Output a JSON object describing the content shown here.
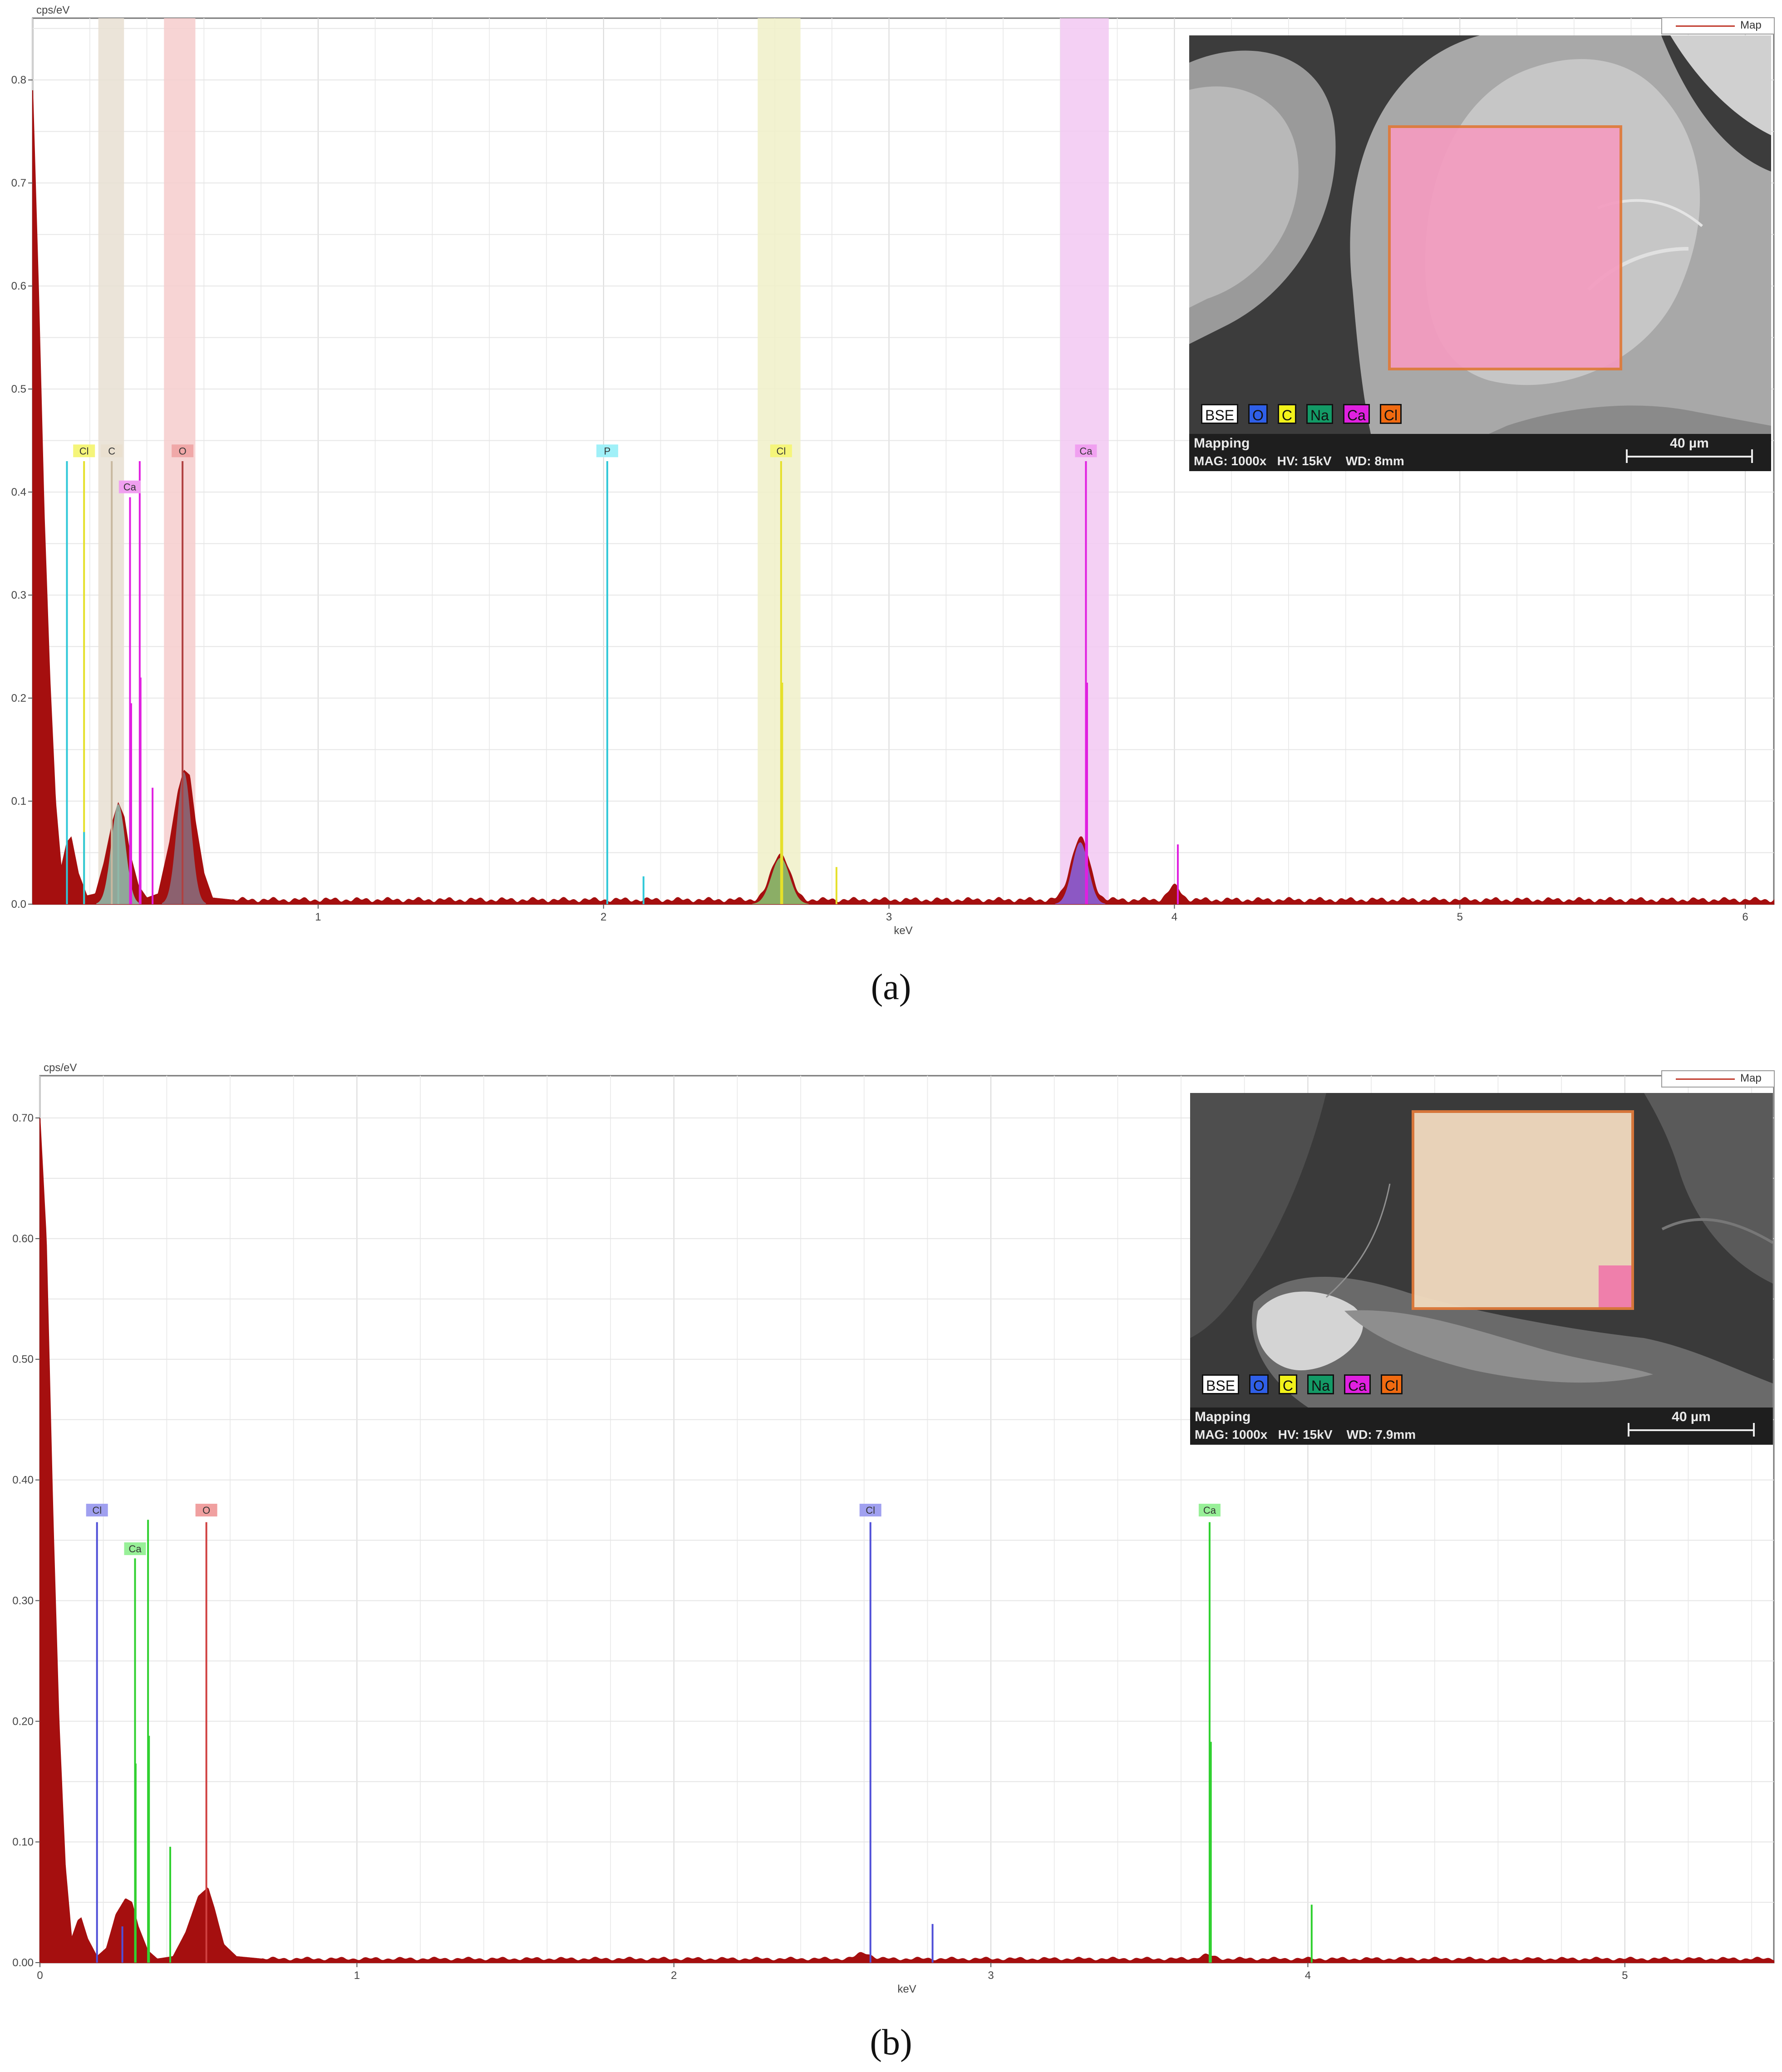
{
  "chart_data": [
    {
      "panel": "a",
      "type": "area",
      "caption": "(a)",
      "ylabel": "cps/eV",
      "xlabel": "keV",
      "xlim": [
        0,
        6.1
      ],
      "ylim": [
        0,
        0.86
      ],
      "xticks": [
        1,
        2,
        3,
        4,
        5,
        6
      ],
      "yticks": [
        0.0,
        0.1,
        0.2,
        0.3,
        0.4,
        0.5,
        0.6,
        0.7,
        0.8
      ],
      "ytick_labels": [
        "0.0",
        "0.1",
        "0.2",
        "0.3",
        "0.4",
        "0.5",
        "0.6",
        "0.7",
        "0.8"
      ],
      "grid": true,
      "legend": {
        "label": "Map",
        "position": "top-right",
        "color": "#c0392b"
      },
      "spectrum_color": "#a50f0f",
      "spectrum": {
        "start": [
          [
            0.0,
            0.79
          ],
          [
            0.02,
            0.6
          ],
          [
            0.04,
            0.38
          ],
          [
            0.06,
            0.22
          ],
          [
            0.08,
            0.1
          ],
          [
            0.1,
            0.035
          ],
          [
            0.12,
            0.06
          ],
          [
            0.135,
            0.065
          ],
          [
            0.16,
            0.03
          ],
          [
            0.19,
            0.008
          ],
          [
            0.22,
            0.01
          ],
          [
            0.25,
            0.04
          ],
          [
            0.28,
            0.08
          ],
          [
            0.3,
            0.098
          ],
          [
            0.32,
            0.085
          ],
          [
            0.34,
            0.05
          ],
          [
            0.37,
            0.018
          ],
          [
            0.4,
            0.006
          ],
          [
            0.44,
            0.01
          ],
          [
            0.48,
            0.06
          ],
          [
            0.51,
            0.11
          ],
          [
            0.53,
            0.13
          ],
          [
            0.55,
            0.125
          ],
          [
            0.57,
            0.08
          ],
          [
            0.6,
            0.03
          ],
          [
            0.63,
            0.006
          ],
          [
            0.7,
            0.004
          ]
        ],
        "baseline": 0.004,
        "peaks": [
          [
            2.62,
            0.045,
            0.045
          ],
          [
            3.67,
            0.06,
            0.045
          ],
          [
            4.0,
            0.013,
            0.03
          ]
        ],
        "noise": 0.0025
      },
      "highlight_bands": [
        {
          "element": "C",
          "from": 0.23,
          "to": 0.32,
          "color": "#e8dfd2"
        },
        {
          "element": "O",
          "from": 0.46,
          "to": 0.57,
          "color": "#f6cccc"
        },
        {
          "element": "Cl",
          "from": 2.54,
          "to": 2.69,
          "color": "#f0f0c8"
        },
        {
          "element": "Ca",
          "from": 3.6,
          "to": 3.77,
          "color": "#f2c8f2"
        }
      ],
      "peak_fills": [
        {
          "element": "C",
          "center": 0.3,
          "height": 0.097,
          "width": 0.035,
          "color": "#8fb8a8"
        },
        {
          "element": "O",
          "center": 0.53,
          "height": 0.128,
          "width": 0.035,
          "color": "#8a6a7a"
        },
        {
          "element": "Cl",
          "center": 2.62,
          "height": 0.045,
          "width": 0.045,
          "color": "#88c070"
        },
        {
          "element": "Ca",
          "center": 3.67,
          "height": 0.06,
          "width": 0.04,
          "color": "#8a60d8"
        }
      ],
      "markers": [
        {
          "label": "Cl",
          "x": 0.18,
          "label_y": 0.44,
          "color": "#e5e02a",
          "label_bg": "#f5f57a"
        },
        {
          "label": "C",
          "x": 0.277,
          "label_y": 0.44,
          "color": "#c8b8a0",
          "label_bg": "#eae0d0"
        },
        {
          "label": "Ca",
          "x": 0.34,
          "label_y": 0.405,
          "color": "#e020e0",
          "label_bg": "#f0a0f0"
        },
        {
          "label": "O",
          "x": 0.525,
          "label_y": 0.44,
          "color": "#b04040",
          "label_bg": "#f0a8a8"
        },
        {
          "label": "P",
          "x": 2.013,
          "label_y": 0.44,
          "color": "#30c8d8",
          "label_bg": "#a0f0f8"
        },
        {
          "label": "Cl",
          "x": 2.622,
          "label_y": 0.44,
          "color": "#e5e02a",
          "label_bg": "#f5f57a"
        },
        {
          "label": "Ca",
          "x": 3.69,
          "label_y": 0.44,
          "color": "#e020e0",
          "label_bg": "#f0a0f0"
        }
      ],
      "lines": [
        {
          "x": 0.12,
          "y": 0.43,
          "color": "#30c8d8"
        },
        {
          "x": 0.18,
          "y": 0.43,
          "color": "#e5e02a"
        },
        {
          "x": 0.18,
          "y": 0.07,
          "color": "#30c8d8"
        },
        {
          "x": 0.277,
          "y": 0.43,
          "color": "#c8b8a0"
        },
        {
          "x": 0.3,
          "y": 0.09,
          "color": "#8fb8a8"
        },
        {
          "x": 0.341,
          "y": 0.395,
          "color": "#e020e0"
        },
        {
          "x": 0.345,
          "y": 0.195,
          "color": "#e020e0"
        },
        {
          "x": 0.375,
          "y": 0.43,
          "color": "#e020e0"
        },
        {
          "x": 0.378,
          "y": 0.22,
          "color": "#e020e0"
        },
        {
          "x": 0.42,
          "y": 0.113,
          "color": "#e020e0"
        },
        {
          "x": 0.525,
          "y": 0.43,
          "color": "#b04040"
        },
        {
          "x": 2.013,
          "y": 0.43,
          "color": "#30c8d8"
        },
        {
          "x": 2.14,
          "y": 0.027,
          "color": "#30c8d8"
        },
        {
          "x": 2.622,
          "y": 0.43,
          "color": "#e5e02a"
        },
        {
          "x": 2.626,
          "y": 0.215,
          "color": "#e5e02a"
        },
        {
          "x": 2.816,
          "y": 0.036,
          "color": "#e5e02a"
        },
        {
          "x": 3.69,
          "y": 0.43,
          "color": "#e020e0"
        },
        {
          "x": 3.694,
          "y": 0.215,
          "color": "#e020e0"
        },
        {
          "x": 4.012,
          "y": 0.058,
          "color": "#e020e0"
        }
      ],
      "inset": {
        "legend": [
          "BSE",
          "O",
          "C",
          "Na",
          "Ca",
          "Cl"
        ],
        "legend_colors": [
          "#ffffff",
          "#2f5fe8",
          "#f2f21a",
          "#139a66",
          "#e020e0",
          "#f06a10"
        ],
        "mode": "Mapping",
        "mag": "MAG: 1000x",
        "hv": "HV: 15kV",
        "wd": "WD: 8mm",
        "scale": "40 µm",
        "map_color": "#f49cc0"
      }
    },
    {
      "panel": "b",
      "type": "area",
      "caption": "(b)",
      "ylabel": "cps/eV",
      "xlabel": "keV",
      "xlim": [
        0,
        5.47
      ],
      "ylim": [
        0,
        0.735
      ],
      "xticks": [
        0,
        1,
        2,
        3,
        4,
        5
      ],
      "yticks": [
        0.0,
        0.1,
        0.2,
        0.3,
        0.4,
        0.5,
        0.6,
        0.7
      ],
      "ytick_labels": [
        "0.00",
        "0.10",
        "0.20",
        "0.30",
        "0.40",
        "0.50",
        "0.60",
        "0.70"
      ],
      "grid": true,
      "legend": {
        "label": "Map",
        "position": "top-right",
        "color": "#c0392b"
      },
      "spectrum_color": "#a50f0f",
      "spectrum": {
        "start": [
          [
            0.0,
            0.7
          ],
          [
            0.02,
            0.6
          ],
          [
            0.04,
            0.38
          ],
          [
            0.06,
            0.2
          ],
          [
            0.08,
            0.08
          ],
          [
            0.1,
            0.02
          ],
          [
            0.12,
            0.035
          ],
          [
            0.13,
            0.037
          ],
          [
            0.15,
            0.02
          ],
          [
            0.18,
            0.005
          ],
          [
            0.21,
            0.012
          ],
          [
            0.24,
            0.04
          ],
          [
            0.27,
            0.053
          ],
          [
            0.29,
            0.05
          ],
          [
            0.31,
            0.03
          ],
          [
            0.34,
            0.01
          ],
          [
            0.37,
            0.003
          ],
          [
            0.42,
            0.005
          ],
          [
            0.46,
            0.025
          ],
          [
            0.5,
            0.055
          ],
          [
            0.53,
            0.062
          ],
          [
            0.55,
            0.045
          ],
          [
            0.58,
            0.015
          ],
          [
            0.62,
            0.005
          ],
          [
            0.7,
            0.003
          ]
        ],
        "baseline": 0.003,
        "peaks": [
          [
            2.6,
            0.005,
            0.03
          ],
          [
            3.68,
            0.003,
            0.03
          ]
        ],
        "noise": 0.0015
      },
      "highlight_bands": [],
      "peak_fills": [],
      "markers": [
        {
          "label": "Cl",
          "x": 0.18,
          "label_y": 0.375,
          "color": "#5050d8",
          "label_bg": "#a0a0f0"
        },
        {
          "label": "Ca",
          "x": 0.3,
          "label_y": 0.343,
          "color": "#30d030",
          "label_bg": "#98f098"
        },
        {
          "label": "O",
          "x": 0.525,
          "label_y": 0.375,
          "color": "#d04040",
          "label_bg": "#f0a0a0"
        },
        {
          "label": "Cl",
          "x": 2.62,
          "label_y": 0.375,
          "color": "#5050d8",
          "label_bg": "#a0a0f0"
        },
        {
          "label": "Ca",
          "x": 3.69,
          "label_y": 0.375,
          "color": "#30d030",
          "label_bg": "#98f098"
        }
      ],
      "lines": [
        {
          "x": 0.18,
          "y": 0.365,
          "color": "#5050d8"
        },
        {
          "x": 0.26,
          "y": 0.03,
          "color": "#5050d8"
        },
        {
          "x": 0.3,
          "y": 0.335,
          "color": "#30d030"
        },
        {
          "x": 0.302,
          "y": 0.165,
          "color": "#30d030"
        },
        {
          "x": 0.341,
          "y": 0.367,
          "color": "#30d030"
        },
        {
          "x": 0.344,
          "y": 0.188,
          "color": "#30d030"
        },
        {
          "x": 0.411,
          "y": 0.096,
          "color": "#30d030"
        },
        {
          "x": 0.525,
          "y": 0.365,
          "color": "#d04040"
        },
        {
          "x": 2.62,
          "y": 0.365,
          "color": "#5050d8"
        },
        {
          "x": 2.816,
          "y": 0.032,
          "color": "#5050d8"
        },
        {
          "x": 3.69,
          "y": 0.365,
          "color": "#30d030"
        },
        {
          "x": 3.694,
          "y": 0.183,
          "color": "#30d030"
        },
        {
          "x": 4.012,
          "y": 0.048,
          "color": "#30d030"
        }
      ],
      "inset": {
        "legend": [
          "BSE",
          "O",
          "C",
          "Na",
          "Ca",
          "Cl"
        ],
        "legend_colors": [
          "#ffffff",
          "#2f5fe8",
          "#f2f21a",
          "#139a66",
          "#e020e0",
          "#f06a10"
        ],
        "mode": "Mapping",
        "mag": "MAG: 1000x",
        "hv": "HV: 15kV",
        "wd": "WD: 7.9mm",
        "scale": "40 µm",
        "map_color": "#f3dcc0"
      }
    }
  ]
}
